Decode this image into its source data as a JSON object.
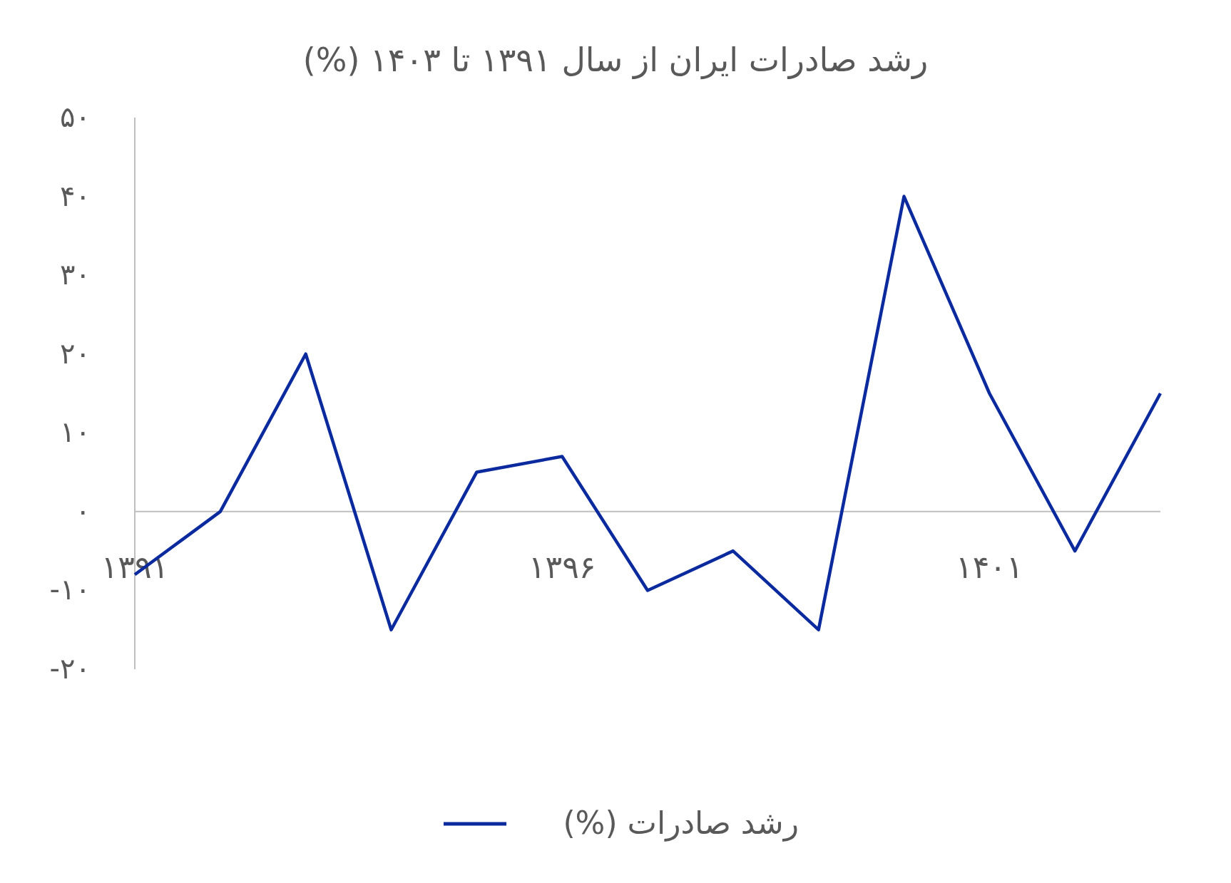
{
  "chart_data": {
    "type": "line",
    "title": "رشد صادرات ایران از سال ۱۳۹۱ تا ۱۴۰۳ (%)",
    "categories": [
      "۱۳۹۱",
      null,
      null,
      null,
      null,
      "۱۳۹۶",
      null,
      null,
      null,
      null,
      "۱۴۰۱",
      null,
      null
    ],
    "series": [
      {
        "name": "رشد صادرات (%)",
        "color": "#0a2a9e",
        "values": [
          -8,
          0,
          20,
          -15,
          5,
          7,
          -10,
          -5,
          -15,
          40,
          15,
          -5,
          15
        ]
      }
    ],
    "ylim": [
      -20,
      50
    ],
    "yticks": [
      {
        "value": -20,
        "label": "-۲۰"
      },
      {
        "value": -10,
        "label": "-۱۰"
      },
      {
        "value": 0,
        "label": "۰"
      },
      {
        "value": 10,
        "label": "۱۰"
      },
      {
        "value": 20,
        "label": "۲۰"
      },
      {
        "value": 30,
        "label": "۳۰"
      },
      {
        "value": 40,
        "label": "۴۰"
      },
      {
        "value": 50,
        "label": "۵۰"
      }
    ],
    "legend": "bottom"
  }
}
